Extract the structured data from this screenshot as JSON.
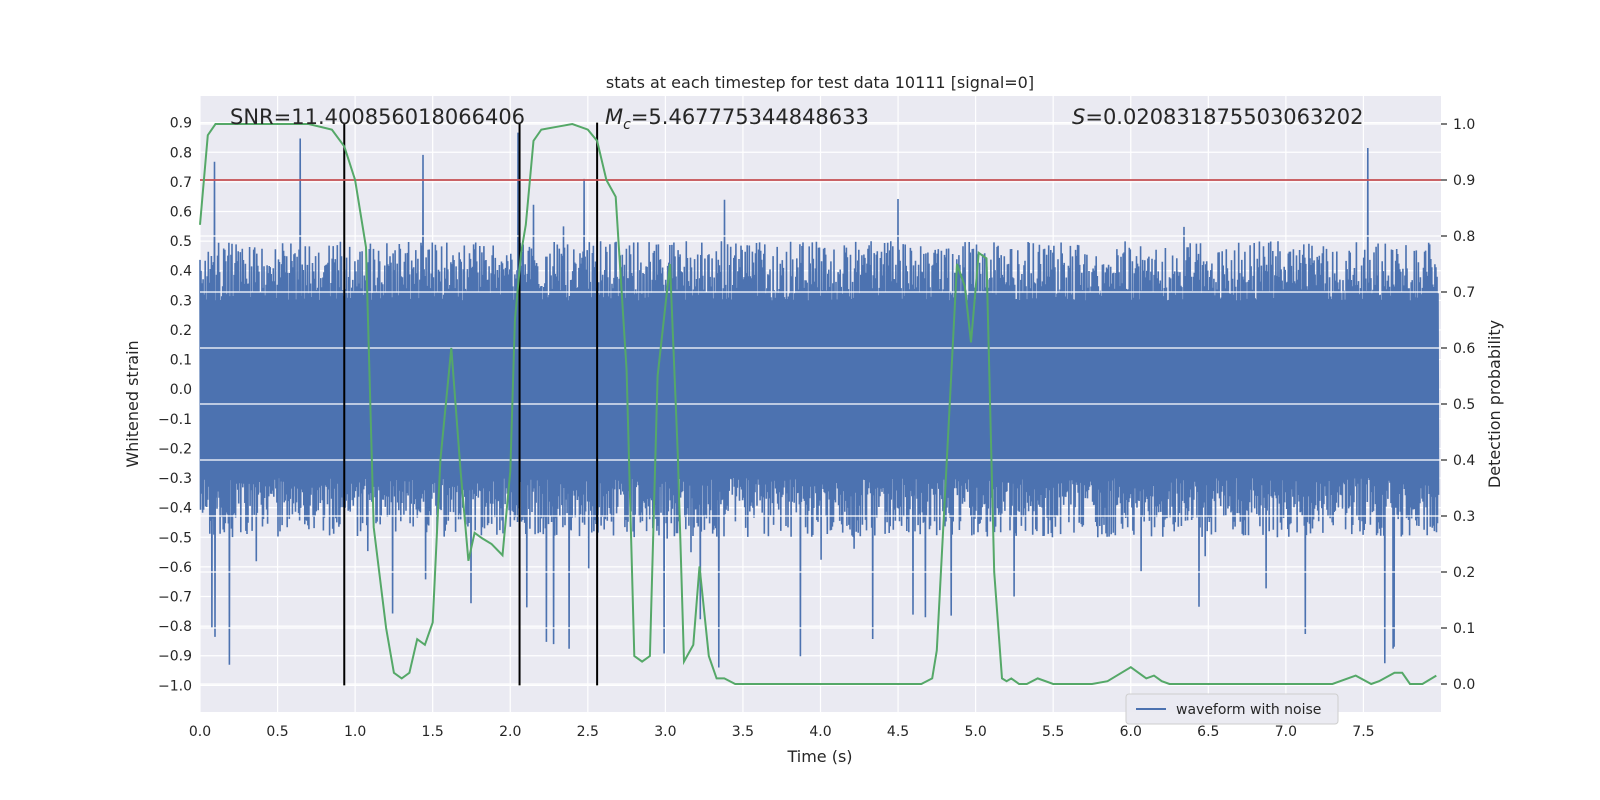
{
  "chart_data": {
    "type": "line",
    "title": "stats at each timestep for test data 10111 [signal=0]",
    "xlabel": "Time (s)",
    "ylabel_left": "Whitened strain",
    "ylabel_right": "Detection probability",
    "xlim": [
      0.0,
      8.0
    ],
    "ylim_left": [
      -1.09,
      0.99
    ],
    "ylim_right": [
      -0.05,
      1.05
    ],
    "x_ticks": [
      "0.0",
      "0.5",
      "1.0",
      "1.5",
      "2.0",
      "2.5",
      "3.0",
      "3.5",
      "4.0",
      "4.5",
      "5.0",
      "5.5",
      "6.0",
      "6.5",
      "7.0",
      "7.5"
    ],
    "y_ticks_left": [
      "0.9",
      "0.8",
      "0.7",
      "0.6",
      "0.5",
      "0.4",
      "0.3",
      "0.2",
      "0.1",
      "0.0",
      "−0.1",
      "−0.2",
      "−0.3",
      "−0.4",
      "−0.5",
      "−0.6",
      "−0.7",
      "−0.8",
      "−0.9",
      "−1.0"
    ],
    "y_ticks_right": [
      "1.0",
      "0.9",
      "0.8",
      "0.7",
      "0.6",
      "0.5",
      "0.4",
      "0.3",
      "0.2",
      "0.1",
      "0.0"
    ],
    "grid": true,
    "legend_position": "bottom-right",
    "annotations": {
      "snr": "SNR=11.400856018066406",
      "mc": "=5.467775344848633",
      "mc_symbol": "M",
      "mc_sub": "c",
      "s": "=0.020831875503063202",
      "s_symbol": "S"
    },
    "vertical_markers": [
      0.93,
      2.06,
      2.56
    ],
    "vertical_marker_range": [
      -1.0,
      0.9
    ],
    "threshold": 0.9,
    "waveform_series": {
      "name": "waveform with noise",
      "color": "#4c72b0",
      "envelope_typical": 0.4,
      "max_value": 0.9,
      "min_value": -1.0
    },
    "probability_series": {
      "color": "#55a868",
      "x": [
        0.0,
        0.05,
        0.1,
        0.2,
        0.3,
        0.5,
        0.7,
        0.85,
        0.93,
        1.0,
        1.07,
        1.12,
        1.2,
        1.25,
        1.3,
        1.35,
        1.4,
        1.45,
        1.5,
        1.55,
        1.62,
        1.68,
        1.73,
        1.77,
        1.82,
        1.88,
        1.95,
        2.0,
        2.03,
        2.07,
        2.1,
        2.15,
        2.2,
        2.3,
        2.4,
        2.5,
        2.56,
        2.62,
        2.68,
        2.75,
        2.8,
        2.85,
        2.9,
        2.95,
        3.03,
        3.08,
        3.12,
        3.18,
        3.22,
        3.28,
        3.33,
        3.38,
        3.45,
        3.55,
        3.7,
        3.9,
        4.1,
        4.3,
        4.5,
        4.65,
        4.72,
        4.75,
        4.82,
        4.88,
        4.93,
        4.97,
        5.02,
        5.07,
        5.12,
        5.17,
        5.2,
        5.23,
        5.28,
        5.33,
        5.4,
        5.5,
        5.6,
        5.75,
        5.85,
        6.0,
        6.1,
        6.15,
        6.2,
        6.25,
        6.35,
        6.45,
        6.55,
        6.7,
        6.9,
        7.1,
        7.3,
        7.45,
        7.55,
        7.6,
        7.7,
        7.75,
        7.8,
        7.88,
        7.97
      ],
      "y": [
        0.82,
        0.98,
        1.0,
        1.0,
        1.0,
        1.0,
        1.0,
        0.99,
        0.96,
        0.9,
        0.78,
        0.28,
        0.1,
        0.02,
        0.01,
        0.02,
        0.08,
        0.07,
        0.11,
        0.4,
        0.6,
        0.38,
        0.22,
        0.27,
        0.26,
        0.25,
        0.23,
        0.38,
        0.65,
        0.77,
        0.82,
        0.97,
        0.99,
        0.995,
        1.0,
        0.99,
        0.97,
        0.9,
        0.87,
        0.56,
        0.05,
        0.04,
        0.05,
        0.55,
        0.75,
        0.41,
        0.04,
        0.07,
        0.21,
        0.05,
        0.01,
        0.01,
        0.0,
        0.0,
        0.0,
        0.0,
        0.0,
        0.0,
        0.0,
        0.0,
        0.01,
        0.06,
        0.43,
        0.75,
        0.71,
        0.61,
        0.77,
        0.76,
        0.2,
        0.01,
        0.005,
        0.01,
        0.0,
        0.0,
        0.01,
        0.0,
        0.0,
        0.0,
        0.005,
        0.03,
        0.01,
        0.015,
        0.005,
        0.0,
        0.0,
        0.0,
        0.0,
        0.0,
        0.0,
        0.0,
        0.0,
        0.015,
        0.0,
        0.005,
        0.02,
        0.02,
        0.0,
        0.0,
        0.015
      ]
    }
  }
}
